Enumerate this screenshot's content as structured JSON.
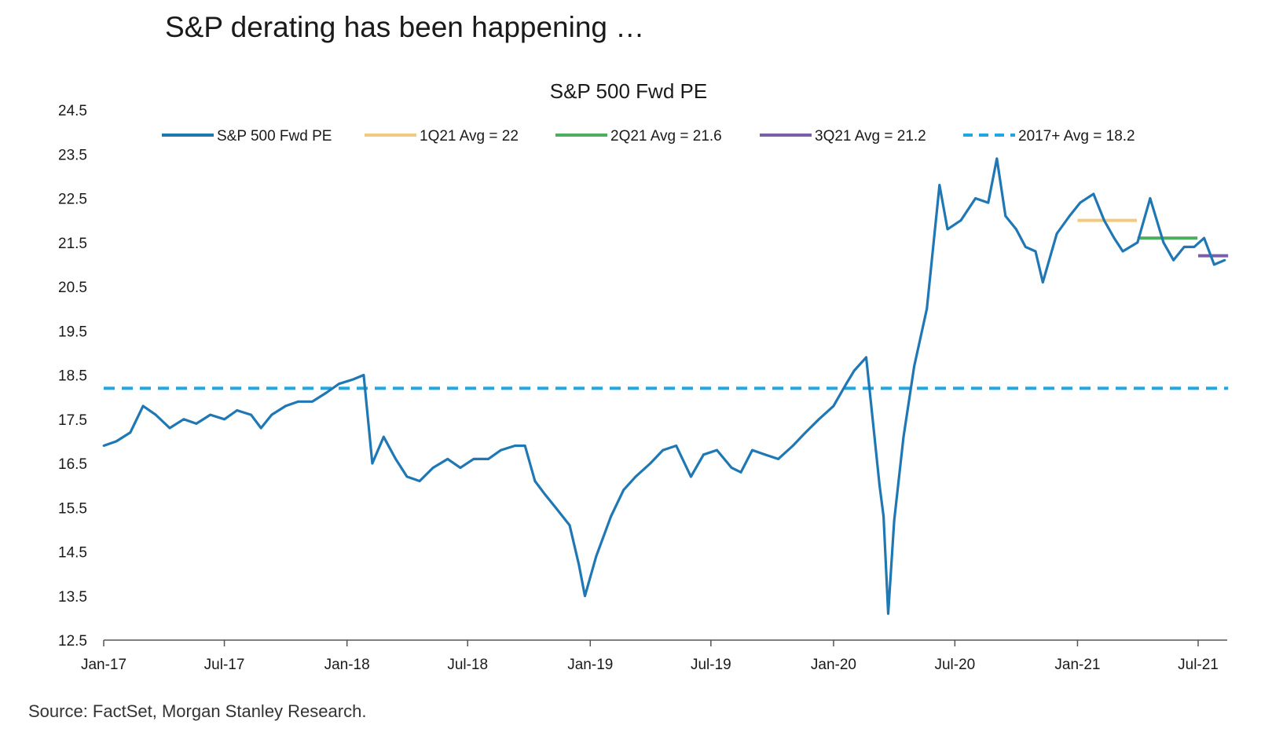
{
  "headline": "S&P derating has been happening …",
  "source": "Source: FactSet, Morgan Stanley Research.",
  "colors": {
    "sp500": "#1f77b4",
    "q1": "#f2c97d",
    "q2": "#4caf60",
    "q3": "#7b5ea7",
    "avg2017": "#1ea7e1"
  },
  "chart_data": {
    "type": "line",
    "title": "S&P 500 Fwd PE",
    "xlabel": "",
    "ylabel": "",
    "ylim": [
      12.5,
      24.5
    ],
    "y_ticks": [
      "24.5",
      "23.5",
      "22.5",
      "21.5",
      "20.5",
      "19.5",
      "18.5",
      "17.5",
      "16.5",
      "15.5",
      "14.5",
      "13.5",
      "12.5"
    ],
    "x_ticks": [
      "Jan-17",
      "Jul-17",
      "Jan-18",
      "Jul-18",
      "Jan-19",
      "Jul-19",
      "Jan-20",
      "Jul-20",
      "Jan-21",
      "Jul-21"
    ],
    "legend": "top",
    "series": [
      {
        "name": "S&P 500 Fwd PE",
        "x": [
          "2017-01-01",
          "2017-01-20",
          "2017-02-10",
          "2017-03-01",
          "2017-03-20",
          "2017-04-10",
          "2017-05-01",
          "2017-05-20",
          "2017-06-10",
          "2017-07-01",
          "2017-07-20",
          "2017-08-10",
          "2017-08-25",
          "2017-09-10",
          "2017-10-01",
          "2017-10-20",
          "2017-11-10",
          "2017-12-01",
          "2017-12-20",
          "2018-01-10",
          "2018-01-26",
          "2018-02-08",
          "2018-02-25",
          "2018-03-15",
          "2018-04-01",
          "2018-04-20",
          "2018-05-10",
          "2018-06-01",
          "2018-06-20",
          "2018-07-10",
          "2018-08-01",
          "2018-08-20",
          "2018-09-10",
          "2018-09-25",
          "2018-10-10",
          "2018-10-25",
          "2018-11-10",
          "2018-12-01",
          "2018-12-15",
          "2018-12-24",
          "2019-01-10",
          "2019-02-01",
          "2019-02-20",
          "2019-03-10",
          "2019-04-01",
          "2019-04-20",
          "2019-05-10",
          "2019-06-01",
          "2019-06-20",
          "2019-07-10",
          "2019-08-01",
          "2019-08-15",
          "2019-09-01",
          "2019-09-20",
          "2019-10-10",
          "2019-11-01",
          "2019-11-20",
          "2019-12-10",
          "2020-01-01",
          "2020-01-20",
          "2020-02-01",
          "2020-02-19",
          "2020-03-01",
          "2020-03-10",
          "2020-03-16",
          "2020-03-23",
          "2020-04-01",
          "2020-04-15",
          "2020-05-01",
          "2020-05-20",
          "2020-06-08",
          "2020-06-20",
          "2020-07-10",
          "2020-08-01",
          "2020-08-20",
          "2020-09-02",
          "2020-09-15",
          "2020-10-01",
          "2020-10-15",
          "2020-10-30",
          "2020-11-10",
          "2020-12-01",
          "2020-12-20",
          "2021-01-05",
          "2021-01-25",
          "2021-02-10",
          "2021-02-25",
          "2021-03-10",
          "2021-04-01",
          "2021-04-20",
          "2021-05-10",
          "2021-05-25",
          "2021-06-10",
          "2021-06-25",
          "2021-07-10",
          "2021-07-25",
          "2021-08-10"
        ],
        "y": [
          16.9,
          17.0,
          17.2,
          17.8,
          17.6,
          17.3,
          17.5,
          17.4,
          17.6,
          17.5,
          17.7,
          17.6,
          17.3,
          17.6,
          17.8,
          17.9,
          17.9,
          18.1,
          18.3,
          18.4,
          18.5,
          16.5,
          17.1,
          16.6,
          16.2,
          16.1,
          16.4,
          16.6,
          16.4,
          16.6,
          16.6,
          16.8,
          16.9,
          16.9,
          16.1,
          15.8,
          15.5,
          15.1,
          14.2,
          13.5,
          14.4,
          15.3,
          15.9,
          16.2,
          16.5,
          16.8,
          16.9,
          16.2,
          16.7,
          16.8,
          16.4,
          16.3,
          16.8,
          16.7,
          16.6,
          16.9,
          17.2,
          17.5,
          17.8,
          18.3,
          18.6,
          18.9,
          17.3,
          16.0,
          15.3,
          13.1,
          15.2,
          17.1,
          18.7,
          20.0,
          22.8,
          21.8,
          22.0,
          22.5,
          22.4,
          23.4,
          22.1,
          21.8,
          21.4,
          21.3,
          20.6,
          21.7,
          22.1,
          22.4,
          22.6,
          22.0,
          21.6,
          21.3,
          21.5,
          22.5,
          21.5,
          21.1,
          21.4,
          21.4,
          21.6,
          21.0,
          21.1
        ]
      },
      {
        "name": "1Q21 Avg = 22",
        "value": 22,
        "x_range": [
          "2021-01-01",
          "2021-03-31"
        ]
      },
      {
        "name": "2Q21 Avg = 21.6",
        "value": 21.6,
        "x_range": [
          "2021-04-01",
          "2021-06-30"
        ]
      },
      {
        "name": "3Q21 Avg = 21.2",
        "value": 21.2,
        "x_range": [
          "2021-07-01",
          "2021-08-15"
        ]
      },
      {
        "name": "2017+ Avg = 18.2",
        "value": 18.2,
        "x_range": [
          "2017-01-01",
          "2021-08-15"
        ]
      }
    ]
  }
}
